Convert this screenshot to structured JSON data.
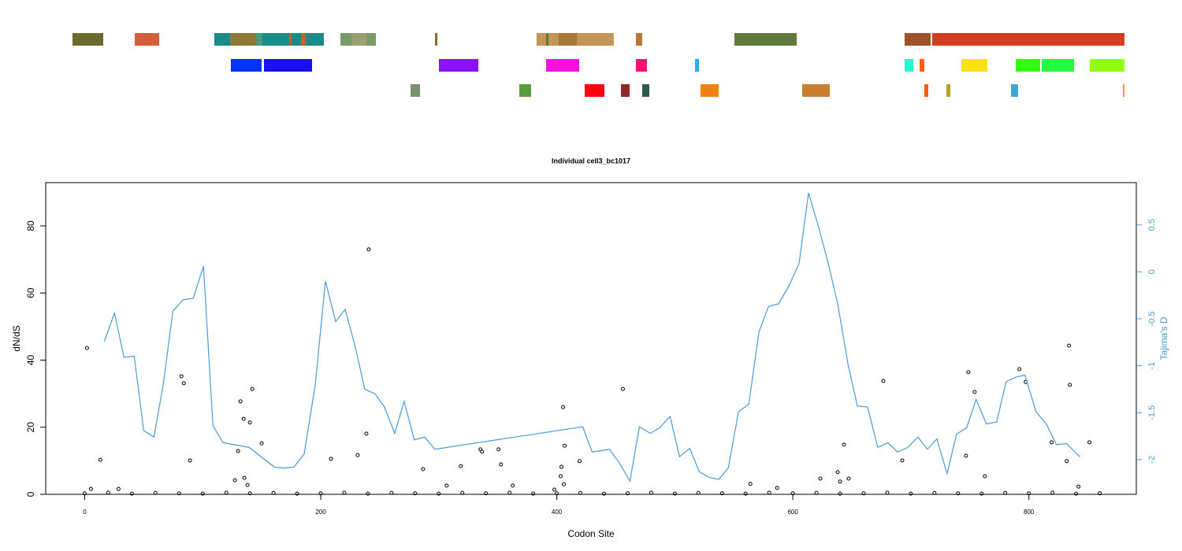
{
  "chart_data": {
    "type": "scatter",
    "title": "Individual cell3_bc1017",
    "x_label": "Codon Site",
    "y_label": "dN/dS",
    "y2_label": "Tajima's D",
    "xlim": [
      -33,
      891
    ],
    "ylim": [
      0,
      92.9
    ],
    "y2lim": [
      -2.37,
      0.95
    ],
    "xticks": [
      0,
      200,
      400,
      600,
      800
    ],
    "yticks": [
      0,
      20,
      40,
      60,
      80
    ],
    "y2ticks": [
      0.5,
      0,
      -0.5,
      -1,
      -1.5,
      -2
    ],
    "series": [
      {
        "type": "scatter",
        "color": "#000000",
        "x": [
          2,
          13.3,
          5.3,
          28.7,
          82,
          84,
          89.3,
          132,
          134.7,
          140,
          142,
          150,
          130,
          127.3,
          135.3,
          138,
          208.7,
          231.3,
          238.7,
          240.7,
          286.7,
          306.7,
          318.7,
          335.3,
          336.7,
          350.7,
          352.7,
          362.7,
          398,
          403.3,
          404,
          405.3,
          406.7,
          406,
          419.3,
          456,
          643.3,
          638,
          647.3,
          640,
          623.3,
          676.7,
          692.7,
          748.7,
          754,
          746.7,
          762.7,
          792,
          797.3,
          834,
          834.7,
          819.3,
          832,
          851.3,
          842,
          564,
          586.7,
          0,
          20,
          40,
          60,
          80,
          100,
          120,
          140,
          160,
          180,
          200,
          220,
          240,
          260,
          280,
          300,
          320,
          340,
          360,
          380,
          400,
          420,
          440,
          460,
          480,
          500,
          520,
          540,
          560,
          580,
          600,
          620,
          640,
          660,
          680,
          700,
          720,
          740,
          760,
          780,
          800,
          820,
          840,
          860
        ],
        "values": [
          43.6,
          10.3,
          1.6,
          1.6,
          35.2,
          33.1,
          10.1,
          27.7,
          22.5,
          21.4,
          31.4,
          15.2,
          12.9,
          4.2,
          4.9,
          2.8,
          10.6,
          11.7,
          18.1,
          73,
          7.5,
          2.6,
          8.4,
          13.4,
          12.7,
          13.4,
          8.9,
          2.6,
          1.4,
          5.4,
          8.2,
          26,
          14.5,
          3,
          9.9,
          31.4,
          14.8,
          6.6,
          4.7,
          3.8,
          4.7,
          33.8,
          10.1,
          36.4,
          30.5,
          11.5,
          5.4,
          37.3,
          33.5,
          44.3,
          32.6,
          15.5,
          9.9,
          15.5,
          2.3,
          3.1,
          1.9,
          0.3,
          0.5,
          0.2,
          0.4,
          0.3,
          0.2,
          0.5,
          0.3,
          0.4,
          0.2,
          0.3,
          0.5,
          0.2,
          0.4,
          0.3,
          0.2,
          0.4,
          0.3,
          0.5,
          0.2,
          0.3,
          0.4,
          0.2,
          0.3,
          0.5,
          0.2,
          0.4,
          0.3,
          0.2,
          0.5,
          0.3,
          0.4,
          0.2,
          0.3,
          0.5,
          0.2,
          0.4,
          0.3,
          0.2,
          0.4,
          0.3,
          0.5,
          0.2,
          0.3
        ]
      },
      {
        "type": "line",
        "color": "#4a9ad8",
        "axis": "y2",
        "x": [
          16.7,
          25.3,
          33.3,
          42,
          50,
          58.7,
          66.7,
          74.7,
          83.3,
          92,
          100.7,
          108.7,
          117.3,
          139.3,
          160.7,
          168.7,
          177.3,
          186,
          195.3,
          204,
          212.7,
          220.7,
          229.3,
          237.3,
          246,
          254,
          262.7,
          270.7,
          279.3,
          288,
          296.7,
          422,
          430,
          444.7,
          453.3,
          462,
          470,
          479.3,
          487.3,
          496,
          504,
          512.7,
          520.7,
          529.3,
          537.3,
          545.3,
          554,
          562.7,
          571.3,
          579.3,
          588,
          596.7,
          605.3,
          613.3,
          622,
          630,
          638,
          646.7,
          654.7,
          663.3,
          672,
          680.7,
          688.7,
          697.3,
          706,
          714,
          722,
          730.7,
          738.7,
          747.3,
          755.3,
          764,
          772.7,
          780.7,
          789.3,
          796.7,
          806,
          814.7,
          823.3,
          832,
          840.7,
          843.3
        ],
        "values": [
          -0.74,
          -0.44,
          -0.91,
          -0.9,
          -1.69,
          -1.76,
          -1.19,
          -0.42,
          -0.3,
          -0.28,
          0.06,
          -1.64,
          -1.82,
          -1.87,
          -2.08,
          -2.09,
          -2.08,
          -1.94,
          -1.21,
          -0.1,
          -0.53,
          -0.4,
          -0.8,
          -1.25,
          -1.3,
          -1.44,
          -1.72,
          -1.38,
          -1.79,
          -1.76,
          -1.89,
          -1.65,
          -1.92,
          -1.89,
          -2.04,
          -2.23,
          -1.65,
          -1.72,
          -1.66,
          -1.54,
          -1.97,
          -1.88,
          -2.13,
          -2.19,
          -2.21,
          -2.09,
          -1.49,
          -1.41,
          -0.64,
          -0.37,
          -0.34,
          -0.15,
          0.09,
          0.84,
          0.47,
          0.09,
          -0.34,
          -0.98,
          -1.43,
          -1.44,
          -1.87,
          -1.82,
          -1.92,
          -1.87,
          -1.76,
          -1.89,
          -1.78,
          -2.15,
          -1.73,
          -1.66,
          -1.36,
          -1.62,
          -1.6,
          -1.17,
          -1.12,
          -1.1,
          -1.49,
          -1.62,
          -1.84,
          -1.83,
          -1.94,
          -1.97
        ]
      }
    ]
  }
}
